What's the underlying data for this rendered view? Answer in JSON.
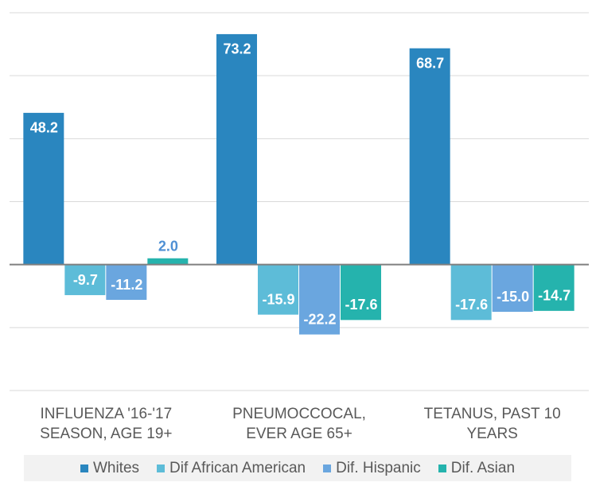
{
  "chart_data": {
    "type": "bar",
    "categories": [
      "INFLUENZA '16-'17 SEASON, AGE 19+",
      "PNEUMOCCOCAL, EVER AGE 65+",
      "TETANUS, PAST 10 YEARS"
    ],
    "series": [
      {
        "name": "Whites",
        "color": "#2a86bf",
        "values": [
          48.2,
          73.2,
          68.7
        ],
        "value_labels": [
          "48.2",
          "73.2",
          "68.7"
        ]
      },
      {
        "name": "Dif African American",
        "color": "#5dbcd8",
        "values": [
          -9.7,
          -15.9,
          -17.6
        ],
        "value_labels": [
          "-9.7",
          "-15.9",
          "-17.6"
        ]
      },
      {
        "name": "Dif. Hispanic",
        "color": "#6aa6df",
        "values": [
          -11.2,
          -22.2,
          -15.0
        ],
        "value_labels": [
          "-11.2",
          "-22.2",
          "-15.0"
        ]
      },
      {
        "name": "Dif. Asian",
        "color": "#25b3ad",
        "values": [
          2.0,
          -17.6,
          -14.7
        ],
        "value_labels": [
          "2.0",
          "-17.6",
          "-14.7"
        ]
      }
    ],
    "ylim": [
      -40,
      80
    ],
    "yticks": [
      -40,
      -20,
      0,
      20,
      40,
      60,
      80
    ],
    "grid": true,
    "legend": "bottom"
  }
}
